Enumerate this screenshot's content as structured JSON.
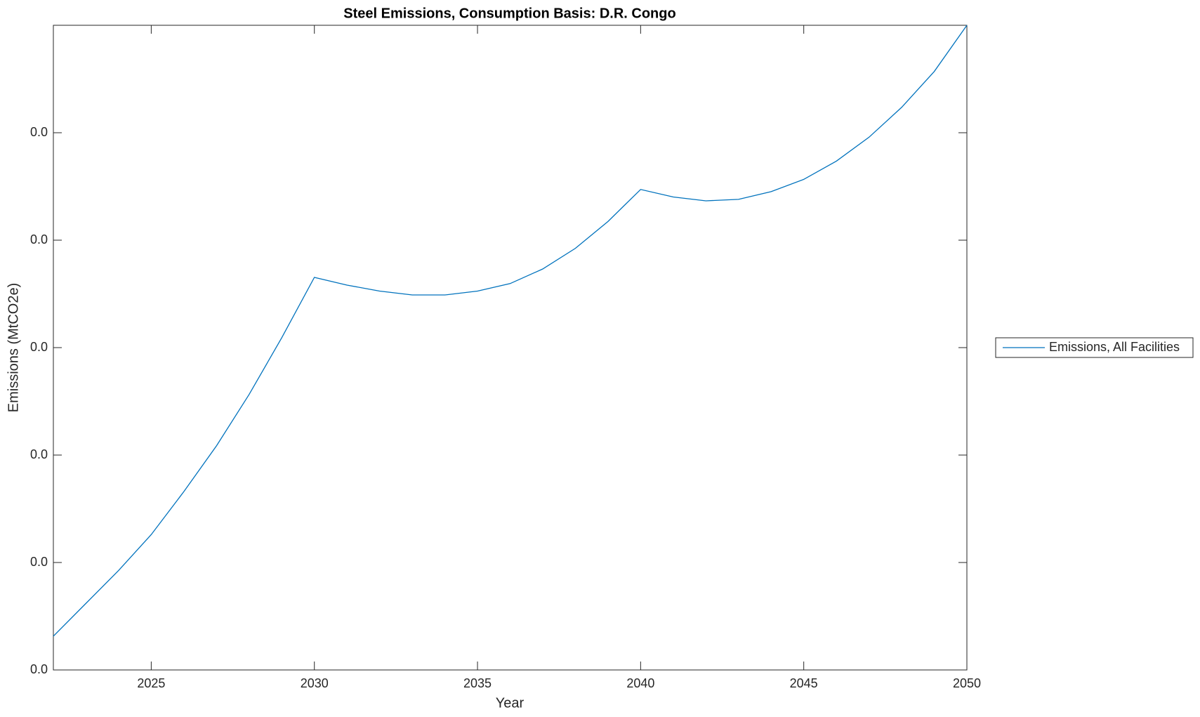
{
  "chart_data": {
    "type": "line",
    "title": "Steel Emissions, Consumption Basis: D.R. Congo",
    "xlabel": "Year",
    "ylabel": "Emissions (MtCO2e)",
    "x": [
      2022,
      2023,
      2024,
      2025,
      2026,
      2027,
      2028,
      2029,
      2030,
      2031,
      2032,
      2033,
      2034,
      2035,
      2036,
      2037,
      2038,
      2039,
      2040,
      2041,
      2042,
      2043,
      2044,
      2045,
      2046,
      2047,
      2048,
      2049,
      2050
    ],
    "series": [
      {
        "name": "Emissions, All Facilities",
        "color": "#0072bd",
        "values": [
          0.00157,
          0.0031,
          0.00463,
          0.0063,
          0.0083,
          0.01043,
          0.01282,
          0.01546,
          0.01827,
          0.01791,
          0.01763,
          0.01745,
          0.01745,
          0.01763,
          0.01798,
          0.01866,
          0.01962,
          0.02087,
          0.02236,
          0.02201,
          0.02183,
          0.0219,
          0.02226,
          0.02283,
          0.02368,
          0.02479,
          0.02618,
          0.02785,
          0.03
        ]
      }
    ],
    "xlim": [
      2022,
      2050
    ],
    "xticks": [
      2025,
      2030,
      2035,
      2040,
      2045,
      2050
    ],
    "ylim": [
      0,
      0.03
    ],
    "yticks": [
      {
        "value": 0,
        "label": "0.0"
      },
      {
        "value": 0.005,
        "label": "0.0"
      },
      {
        "value": 0.01,
        "label": "0.0"
      },
      {
        "value": 0.015,
        "label": "0.0"
      },
      {
        "value": 0.02,
        "label": "0.0"
      },
      {
        "value": 0.025,
        "label": "0.0"
      }
    ],
    "grid": false,
    "legend": "right"
  }
}
